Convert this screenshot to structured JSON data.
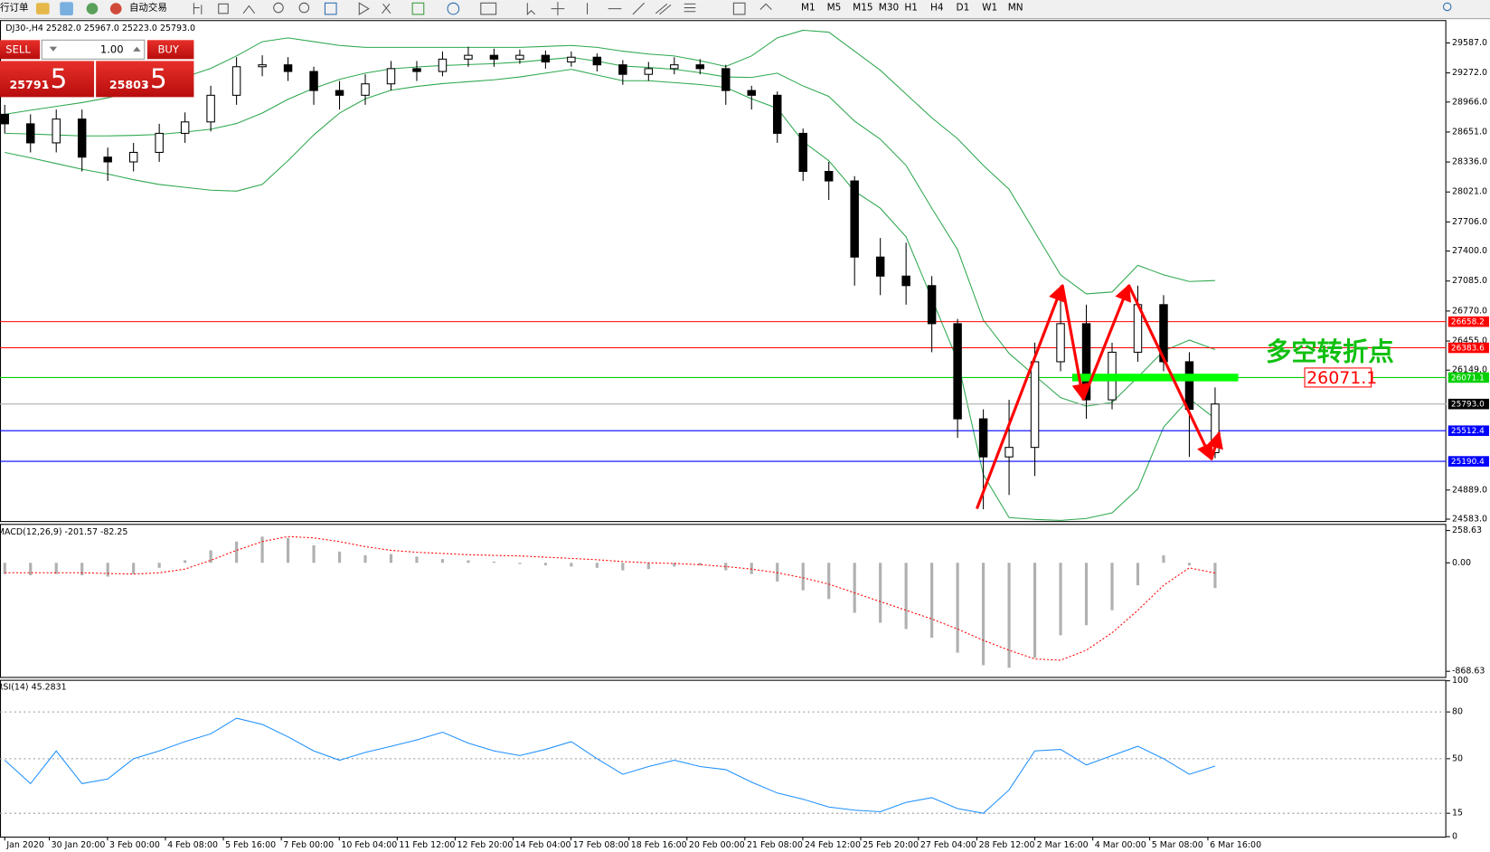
{
  "toolbar": {
    "new_order": "行订单",
    "auto_trading": "自动交易",
    "timeframes": [
      "M1",
      "M5",
      "M15",
      "M30",
      "H1",
      "H4",
      "D1",
      "W1",
      "MN"
    ]
  },
  "trade_panel": {
    "sell": "SELL",
    "lots": "1.00",
    "buy": "BUY",
    "bid": "25791",
    "bid_frac": ".5",
    "ask": "25803",
    "ask_frac": ".5"
  },
  "chart_data": [
    {
      "type": "candlestick",
      "title": "DJ30-,H4  25282.0 25967.0 25223.0 25793.0",
      "open": [
        28837,
        28737,
        28537,
        28787,
        28387,
        28337,
        28437,
        28637,
        28757,
        29037,
        29337,
        29357,
        29287,
        29087,
        29037,
        29157,
        29317,
        29287,
        29417,
        29457,
        29417,
        29457,
        29387,
        29437,
        29357,
        29257,
        29317,
        29357,
        29317,
        29087,
        29037,
        28637,
        28237,
        28137,
        27337,
        27137,
        27037,
        26637,
        25637,
        25237,
        25337,
        26237,
        26637,
        25837,
        26337,
        26837,
        26237,
        25282
      ],
      "high": [
        28937,
        28837,
        28887,
        28887,
        28487,
        28537,
        28737,
        28857,
        29137,
        29437,
        29457,
        29437,
        29337,
        29187,
        29257,
        29397,
        29397,
        29497,
        29547,
        29527,
        29517,
        29507,
        29497,
        29477,
        29407,
        29387,
        29437,
        29417,
        29357,
        29137,
        29077,
        28687,
        28337,
        28187,
        27537,
        27487,
        27137,
        26687,
        25737,
        25837,
        26437,
        27037,
        26837,
        26437,
        27037,
        26937,
        26337,
        25967
      ],
      "low": [
        28637,
        28437,
        28437,
        28237,
        28137,
        28237,
        28337,
        28537,
        28657,
        28937,
        29237,
        29187,
        28937,
        28887,
        28937,
        29087,
        29187,
        29237,
        29337,
        29337,
        29367,
        29317,
        29337,
        29287,
        29147,
        29187,
        29257,
        29257,
        28937,
        28887,
        28537,
        28137,
        27937,
        27037,
        26937,
        26837,
        26337,
        25437,
        24687,
        24837,
        25037,
        26137,
        25637,
        25737,
        26237,
        26137,
        25237,
        25223
      ],
      "close": [
        28737,
        28537,
        28787,
        28387,
        28337,
        28437,
        28637,
        28757,
        29037,
        29337,
        29357,
        29287,
        29087,
        29037,
        29157,
        29317,
        29287,
        29417,
        29457,
        29417,
        29457,
        29387,
        29437,
        29357,
        29257,
        29317,
        29357,
        29317,
        29087,
        29037,
        28637,
        28237,
        28137,
        27337,
        27137,
        27037,
        26637,
        25637,
        25237,
        25337,
        26237,
        26637,
        25837,
        26337,
        26837,
        26237,
        25737,
        25793
      ],
      "bands": [
        {
          "color": "#2ea84f",
          "values": [
            28837,
            28880,
            28920,
            28960,
            29010,
            29080,
            29150,
            29230,
            29320,
            29450,
            29600,
            29640,
            29600,
            29560,
            29540,
            29540,
            29540,
            29540,
            29540,
            29540,
            29540,
            29550,
            29560,
            29540,
            29500,
            29470,
            29450,
            29400,
            29340,
            29450,
            29640,
            29720,
            29700,
            29500,
            29300,
            29050,
            28800,
            28580,
            28300,
            28050,
            27600,
            27150,
            26950,
            26970,
            27250,
            27150,
            27080,
            27090
          ]
        },
        {
          "color": "#2ea84f",
          "values": [
            28637,
            28630,
            28620,
            28610,
            28610,
            28615,
            28625,
            28650,
            28680,
            28740,
            28850,
            28995,
            29110,
            29205,
            29270,
            29315,
            29335,
            29350,
            29360,
            29370,
            29385,
            29410,
            29435,
            29395,
            29345,
            29330,
            29310,
            29275,
            29230,
            29225,
            29270,
            29135,
            29025,
            28765,
            28575,
            28300,
            27850,
            27415,
            26675,
            26325,
            26090,
            25860,
            25770,
            25810,
            26075,
            26350,
            26465,
            26365
          ]
        },
        {
          "color": "#2ea84f",
          "values": [
            28437,
            28380,
            28320,
            28260,
            28210,
            28150,
            28100,
            28070,
            28040,
            28030,
            28100,
            28350,
            28620,
            28850,
            29000,
            29090,
            29130,
            29160,
            29180,
            29200,
            29230,
            29270,
            29310,
            29250,
            29190,
            29190,
            29170,
            29150,
            29120,
            29000,
            28900,
            28550,
            28350,
            28030,
            27850,
            27550,
            26900,
            26250,
            25050,
            24600,
            24580,
            24570,
            24590,
            24650,
            24900,
            25550,
            25850,
            25640
          ]
        }
      ],
      "levels": [
        {
          "value": 26658.2,
          "label": "26658.2",
          "color": "#ff0000"
        },
        {
          "value": 26383.6,
          "label": "26383.6",
          "color": "#ff0000"
        },
        {
          "value": 26071.1,
          "label": "26071.1",
          "color": "#00d000"
        },
        {
          "value": 25793.0,
          "label": "25793.0",
          "color": "#000000"
        },
        {
          "value": 25512.4,
          "label": "25512.4",
          "color": "#0000ff"
        },
        {
          "value": 25190.4,
          "label": "25190.4",
          "color": "#0000ff"
        }
      ],
      "zone": {
        "value": 26071.1,
        "x": [
          41.45,
          47.9
        ],
        "color": "#00ff00"
      },
      "annotation": {
        "text": "多空转折点",
        "value": 26071.1,
        "label": "26071.1"
      },
      "arrows": {
        "x": [
          37.75,
          41.07,
          41.88,
          43.65,
          46.86,
          47.16
        ],
        "y": [
          24693,
          27040,
          25842,
          27040,
          25212,
          25492
        ],
        "color": "#ff0000"
      },
      "ylim": [
        24563,
        29817
      ],
      "yticks": [
        {
          "value": 29587,
          "label": "29587.0"
        },
        {
          "value": 29272,
          "label": "29272.0"
        },
        {
          "value": 28966,
          "label": "28966.0"
        },
        {
          "value": 28651,
          "label": "28651.0"
        },
        {
          "value": 28336,
          "label": "28336.0"
        },
        {
          "value": 28021,
          "label": "28021.0"
        },
        {
          "value": 27706,
          "label": "27706.0"
        },
        {
          "value": 27400,
          "label": "27400.0"
        },
        {
          "value": 27085,
          "label": "27085.0"
        },
        {
          "value": 26770,
          "label": "26770.0"
        },
        {
          "value": 26455,
          "label": "26455.0"
        },
        {
          "value": 26149,
          "label": "26149.0"
        },
        {
          "value": 24889,
          "label": "24889.0"
        },
        {
          "value": 24583,
          "label": "24583.0"
        }
      ]
    },
    {
      "type": "macd",
      "title": "MACD(12,26,9) -201.57 -82.25",
      "values": [
        -90,
        -100,
        -90,
        -100,
        -110,
        -90,
        -40,
        20,
        100,
        170,
        210,
        200,
        140,
        90,
        60,
        70,
        50,
        30,
        20,
        10,
        -10,
        -20,
        -30,
        -40,
        -60,
        -50,
        -30,
        -20,
        -60,
        -90,
        -150,
        -220,
        -290,
        -400,
        -480,
        -530,
        -600,
        -720,
        -820,
        -840,
        -760,
        -580,
        -500,
        -380,
        -180,
        60,
        -20,
        -201.57
      ],
      "color": "#b0b0b0",
      "signal": [
        -80,
        -80,
        -80,
        -80,
        -85,
        -90,
        -80,
        -50,
        20,
        100,
        170,
        210,
        200,
        170,
        130,
        100,
        85,
        75,
        65,
        60,
        55,
        45,
        35,
        25,
        10,
        0,
        -5,
        -15,
        -30,
        -50,
        -80,
        -120,
        -170,
        -240,
        -310,
        -380,
        -450,
        -530,
        -620,
        -700,
        -770,
        -780,
        -700,
        -560,
        -380,
        -180,
        -40,
        -82.25
      ],
      "signal_color": "#ff0000",
      "ylim": [
        -914,
        304
      ],
      "yticks": [
        {
          "value": 258.63,
          "label": "258.63"
        },
        {
          "value": 0,
          "label": "0.00"
        },
        {
          "value": -868.63,
          "label": "-868.63"
        }
      ]
    },
    {
      "type": "line",
      "title": "RSI(14) 45.2831",
      "values": [
        49,
        34,
        55,
        34,
        37,
        50,
        55,
        61,
        66,
        76,
        72,
        64,
        55,
        49,
        54,
        58,
        62,
        67,
        60,
        55,
        52,
        56,
        61,
        50,
        40,
        45,
        49,
        45,
        43,
        35,
        28,
        24,
        19,
        17,
        16,
        22,
        25,
        18,
        15,
        30,
        55,
        56,
        46,
        52,
        58,
        50,
        40,
        45.2831
      ],
      "color": "#1e90ff",
      "levels": [
        80,
        50,
        15
      ],
      "ylim": [
        0,
        100
      ],
      "yticks": [
        100,
        80,
        50,
        15,
        0
      ],
      "xticks": [
        {
          "value": 0,
          "label": "Jan 2020"
        },
        {
          "value": 1.73,
          "label": "30 Jan 20:00"
        },
        {
          "value": 3.99,
          "label": "3 Feb 00:00"
        },
        {
          "value": 6.24,
          "label": "4 Feb 08:00"
        },
        {
          "value": 8.49,
          "label": "5 Feb 16:00"
        },
        {
          "value": 10.74,
          "label": "7 Feb 00:00"
        },
        {
          "value": 12.99,
          "label": "10 Feb 04:00"
        },
        {
          "value": 15.24,
          "label": "11 Feb 12:00"
        },
        {
          "value": 17.49,
          "label": "12 Feb 20:00"
        },
        {
          "value": 19.74,
          "label": "14 Feb 04:00"
        },
        {
          "value": 21.99,
          "label": "17 Feb 08:00"
        },
        {
          "value": 24.24,
          "label": "18 Feb 16:00"
        },
        {
          "value": 26.49,
          "label": "20 Feb 00:00"
        },
        {
          "value": 28.74,
          "label": "21 Feb 08:00"
        },
        {
          "value": 30.99,
          "label": "24 Feb 12:00"
        },
        {
          "value": 33.24,
          "label": "25 Feb 20:00"
        },
        {
          "value": 35.48,
          "label": "27 Feb 04:00"
        },
        {
          "value": 37.75,
          "label": "28 Feb 12:00"
        },
        {
          "value": 40.0,
          "label": "2 Mar 16:00"
        },
        {
          "value": 42.25,
          "label": "4 Mar 00:00"
        },
        {
          "value": 44.46,
          "label": "5 Mar 08:00"
        },
        {
          "value": 46.72,
          "label": "6 Mar 16:00"
        }
      ]
    }
  ]
}
